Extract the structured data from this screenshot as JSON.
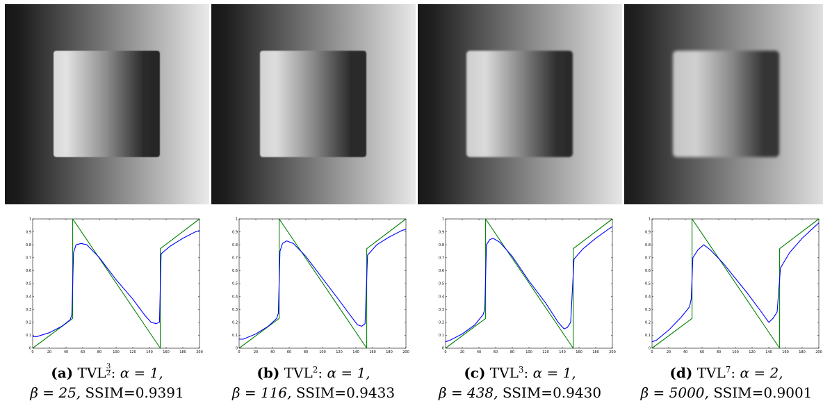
{
  "figure": {
    "panels": [
      {
        "tag": "(a)",
        "method": "TVL",
        "exponent": "3/2",
        "alpha": "α = 1,",
        "beta": "β = 25,",
        "ssim": "SSIM=0.9391",
        "blur": 0.6
      },
      {
        "tag": "(b)",
        "method": "TVL",
        "exponent": "2",
        "alpha": "α = 1,",
        "beta": "β = 116,",
        "ssim": "SSIM=0.9433",
        "blur": 0.9
      },
      {
        "tag": "(c)",
        "method": "TVL",
        "exponent": "3",
        "alpha": "α = 1,",
        "beta": "β = 438,",
        "ssim": "SSIM=0.9430",
        "blur": 1.3
      },
      {
        "tag": "(d)",
        "method": "TVL",
        "exponent": "7",
        "alpha": "α = 2,",
        "beta": "β = 5000,",
        "ssim": "SSIM=0.9001",
        "blur": 2.2
      }
    ]
  },
  "chart_data": [
    {
      "type": "line",
      "xlim": [
        0,
        200
      ],
      "ylim": [
        0,
        1
      ],
      "x_ticks": [
        0,
        20,
        40,
        60,
        80,
        100,
        120,
        140,
        160,
        180,
        200
      ],
      "y_ticks": [
        0,
        0.1,
        0.2,
        0.3,
        0.4,
        0.5,
        0.6,
        0.7,
        0.8,
        0.9,
        1
      ],
      "series": [
        {
          "color": "#008000",
          "points": [
            [
              0,
              0
            ],
            [
              48,
              0.23
            ],
            [
              48,
              1
            ],
            [
              153,
              0
            ],
            [
              153,
              0.77
            ],
            [
              200,
              1
            ]
          ]
        },
        {
          "color": "#0000ff",
          "points": [
            [
              0,
              0.09
            ],
            [
              5,
              0.09
            ],
            [
              20,
              0.12
            ],
            [
              35,
              0.17
            ],
            [
              45,
              0.22
            ],
            [
              47,
              0.26
            ],
            [
              49,
              0.74
            ],
            [
              52,
              0.8
            ],
            [
              58,
              0.81
            ],
            [
              65,
              0.8
            ],
            [
              80,
              0.7
            ],
            [
              100,
              0.53
            ],
            [
              120,
              0.38
            ],
            [
              135,
              0.25
            ],
            [
              142,
              0.2
            ],
            [
              148,
              0.19
            ],
            [
              152,
              0.2
            ],
            [
              154,
              0.73
            ],
            [
              165,
              0.79
            ],
            [
              180,
              0.85
            ],
            [
              195,
              0.9
            ],
            [
              200,
              0.91
            ]
          ]
        }
      ]
    },
    {
      "type": "line",
      "xlim": [
        0,
        200
      ],
      "ylim": [
        0,
        1
      ],
      "x_ticks": [
        0,
        20,
        40,
        60,
        80,
        100,
        120,
        140,
        160,
        180,
        200
      ],
      "y_ticks": [
        0,
        0.1,
        0.2,
        0.3,
        0.4,
        0.5,
        0.6,
        0.7,
        0.8,
        0.9,
        1
      ],
      "series": [
        {
          "color": "#008000",
          "points": [
            [
              0,
              0
            ],
            [
              48,
              0.23
            ],
            [
              48,
              1
            ],
            [
              153,
              0
            ],
            [
              153,
              0.77
            ],
            [
              200,
              1
            ]
          ]
        },
        {
          "color": "#0000ff",
          "points": [
            [
              0,
              0.07
            ],
            [
              5,
              0.07
            ],
            [
              20,
              0.11
            ],
            [
              35,
              0.17
            ],
            [
              45,
              0.23
            ],
            [
              47,
              0.27
            ],
            [
              49,
              0.75
            ],
            [
              52,
              0.81
            ],
            [
              57,
              0.83
            ],
            [
              65,
              0.81
            ],
            [
              80,
              0.71
            ],
            [
              100,
              0.54
            ],
            [
              120,
              0.37
            ],
            [
              135,
              0.24
            ],
            [
              142,
              0.18
            ],
            [
              147,
              0.17
            ],
            [
              151,
              0.19
            ],
            [
              154,
              0.72
            ],
            [
              165,
              0.8
            ],
            [
              180,
              0.86
            ],
            [
              195,
              0.91
            ],
            [
              200,
              0.92
            ]
          ]
        }
      ]
    },
    {
      "type": "line",
      "xlim": [
        0,
        200
      ],
      "ylim": [
        0,
        1
      ],
      "x_ticks": [
        0,
        20,
        40,
        60,
        80,
        100,
        120,
        140,
        160,
        180,
        200
      ],
      "y_ticks": [
        0,
        0.1,
        0.2,
        0.3,
        0.4,
        0.5,
        0.6,
        0.7,
        0.8,
        0.9,
        1
      ],
      "series": [
        {
          "color": "#008000",
          "points": [
            [
              0,
              0
            ],
            [
              48,
              0.23
            ],
            [
              48,
              1
            ],
            [
              153,
              0
            ],
            [
              153,
              0.77
            ],
            [
              200,
              1
            ]
          ]
        },
        {
          "color": "#0000ff",
          "points": [
            [
              0,
              0.05
            ],
            [
              5,
              0.06
            ],
            [
              20,
              0.11
            ],
            [
              35,
              0.18
            ],
            [
              45,
              0.26
            ],
            [
              47,
              0.3
            ],
            [
              49,
              0.8
            ],
            [
              53,
              0.84
            ],
            [
              57,
              0.85
            ],
            [
              65,
              0.82
            ],
            [
              80,
              0.71
            ],
            [
              100,
              0.52
            ],
            [
              120,
              0.35
            ],
            [
              135,
              0.2
            ],
            [
              142,
              0.15
            ],
            [
              146,
              0.16
            ],
            [
              150,
              0.2
            ],
            [
              154,
              0.69
            ],
            [
              165,
              0.77
            ],
            [
              180,
              0.85
            ],
            [
              195,
              0.92
            ],
            [
              200,
              0.94
            ]
          ]
        }
      ]
    },
    {
      "type": "line",
      "xlim": [
        0,
        200
      ],
      "ylim": [
        0,
        1
      ],
      "x_ticks": [
        0,
        20,
        40,
        60,
        80,
        100,
        120,
        140,
        160,
        180,
        200
      ],
      "y_ticks": [
        0,
        0.1,
        0.2,
        0.3,
        0.4,
        0.5,
        0.6,
        0.7,
        0.8,
        0.9,
        1
      ],
      "series": [
        {
          "color": "#008000",
          "points": [
            [
              0,
              0
            ],
            [
              48,
              0.23
            ],
            [
              48,
              1
            ],
            [
              153,
              0
            ],
            [
              153,
              0.77
            ],
            [
              200,
              1
            ]
          ]
        },
        {
          "color": "#0000ff",
          "points": [
            [
              0,
              0.05
            ],
            [
              5,
              0.06
            ],
            [
              20,
              0.14
            ],
            [
              35,
              0.24
            ],
            [
              45,
              0.32
            ],
            [
              47,
              0.38
            ],
            [
              49,
              0.7
            ],
            [
              55,
              0.76
            ],
            [
              62,
              0.8
            ],
            [
              70,
              0.76
            ],
            [
              85,
              0.66
            ],
            [
              100,
              0.54
            ],
            [
              115,
              0.42
            ],
            [
              130,
              0.29
            ],
            [
              140,
              0.2
            ],
            [
              145,
              0.23
            ],
            [
              150,
              0.28
            ],
            [
              154,
              0.62
            ],
            [
              165,
              0.74
            ],
            [
              180,
              0.85
            ],
            [
              195,
              0.94
            ],
            [
              200,
              0.97
            ]
          ]
        }
      ]
    }
  ]
}
